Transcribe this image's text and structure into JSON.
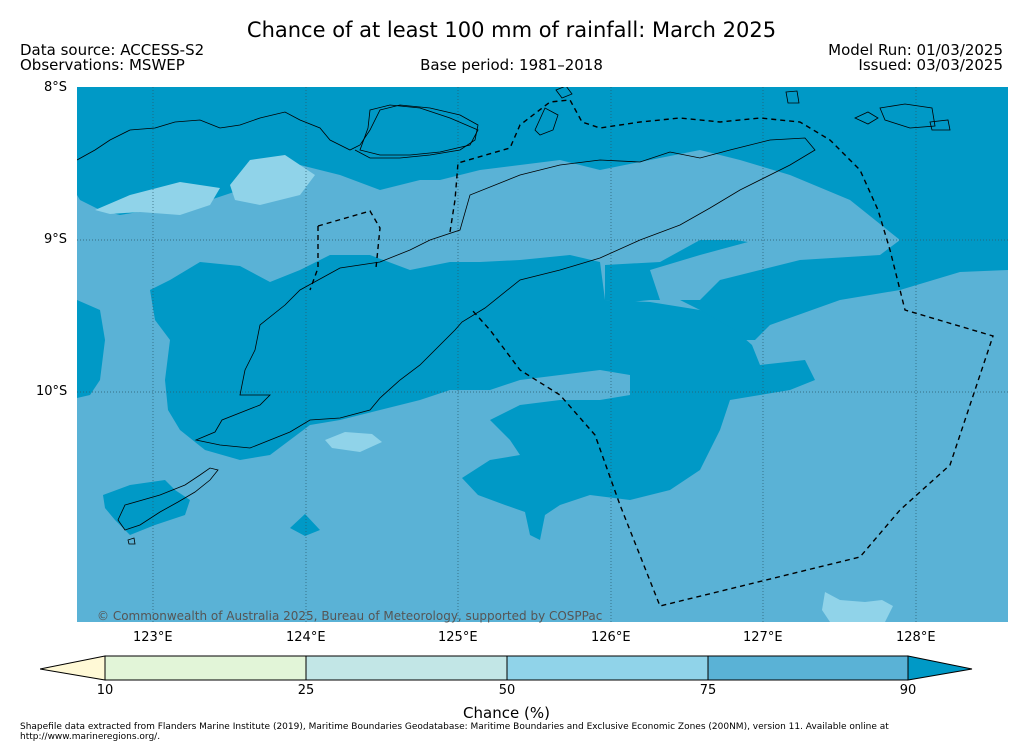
{
  "header": {
    "title": "Chance of at least 100 mm of rainfall: March 2025",
    "data_source": "Data source: ACCESS-S2",
    "observations": "Observations: MSWEP",
    "base_period": "Base period: 1981–2018",
    "model_run": "Model Run: 01/03/2025",
    "issued": "Issued: 03/03/2025"
  },
  "map": {
    "lat_labels": [
      "8°S",
      "9°S",
      "10°S"
    ],
    "lon_labels": [
      "123°E",
      "124°E",
      "125°E",
      "126°E",
      "127°E",
      "128°E"
    ],
    "copyright": "© Commonwealth of Australia 2025, Bureau of Meteorology, supported by COSPPac",
    "colors": {
      "over_90": "#0099c6",
      "c75_90": "#5ab2d6",
      "c50_75": "#90d3e9",
      "c25_50": "#c2e6e6",
      "c10_25": "#e2f5d8",
      "under_10": "#fff9d6",
      "coastline": "#000000",
      "eez_boundary": "#000000",
      "gridline": "#2a5a6a"
    }
  },
  "colorbar": {
    "ticks": [
      "10",
      "25",
      "50",
      "75",
      "90"
    ],
    "label": "Chance (%)"
  },
  "footer": {
    "note": "Shapefile data extracted from Flanders Marine Institute (2019), Maritime Boundaries Geodatabase: Maritime Boundaries and Exclusive Economic Zones (200NM), version 11. Available online at http://www.marineregions.org/."
  }
}
